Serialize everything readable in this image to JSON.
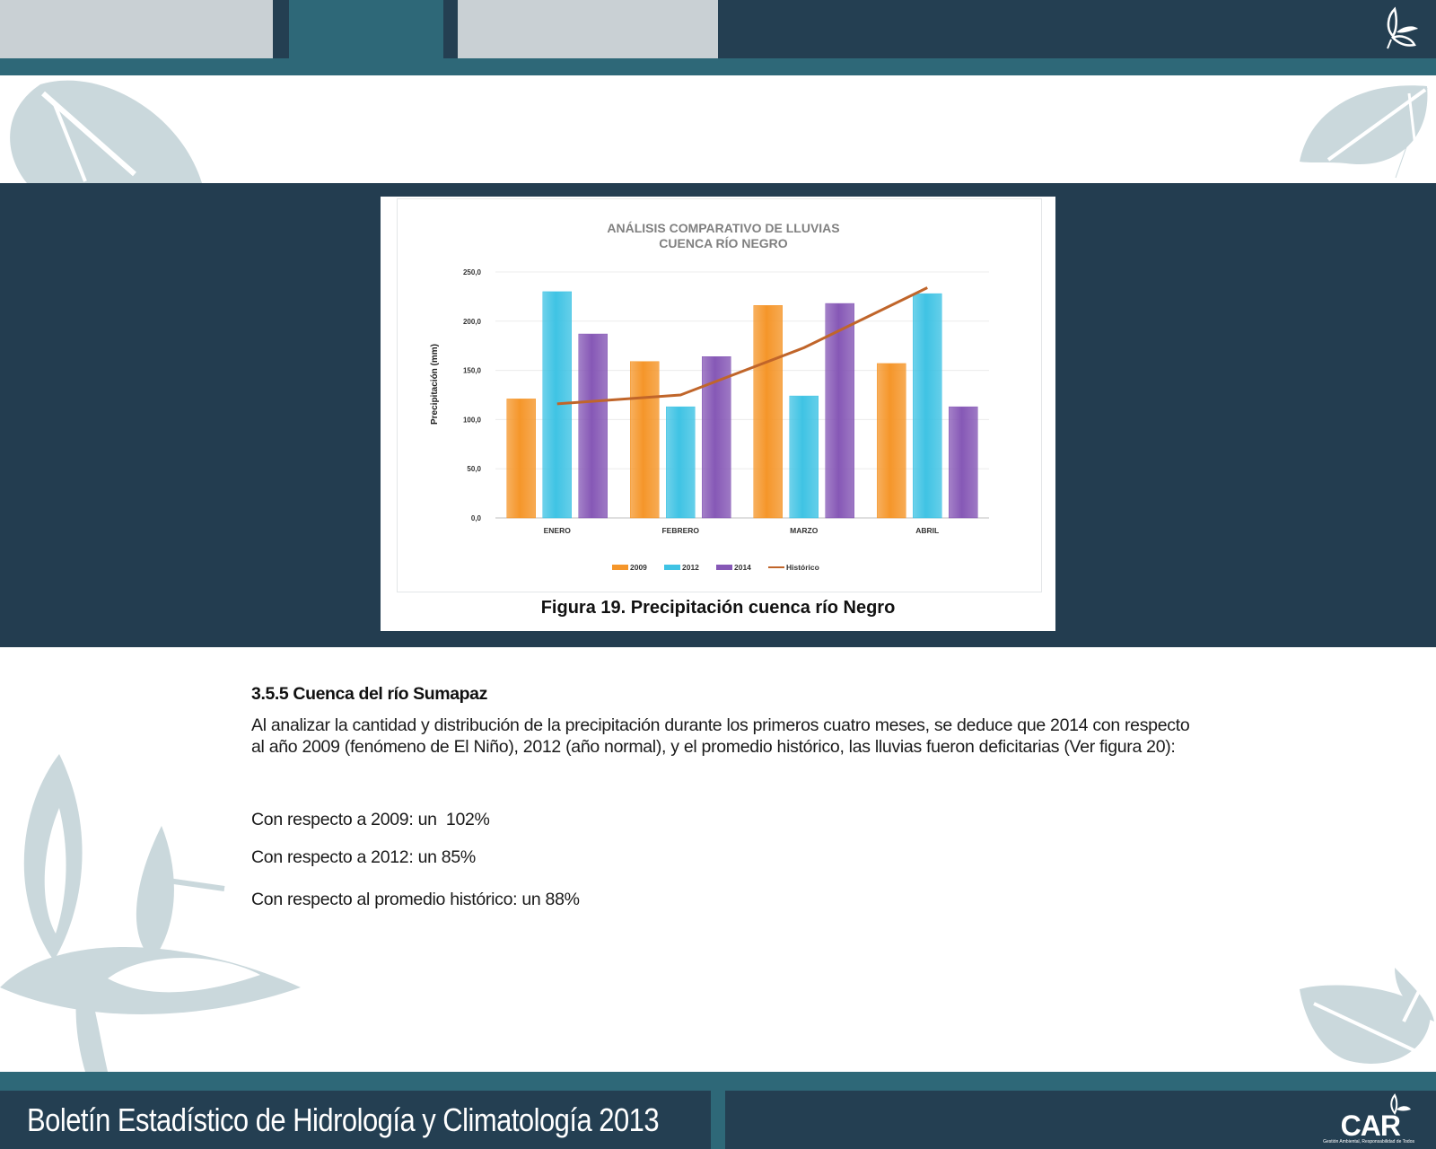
{
  "header": {
    "logo_icon": "butterfly-icon"
  },
  "colors": {
    "dark_navy": "#243f52",
    "teal": "#2e6878",
    "light_gray": "#c9d0d4",
    "leaf_decoration": "#cad8dc",
    "series_2009": "#f5962a",
    "series_2012": "#3fc3e4",
    "series_2014": "#8658b6",
    "series_historico": "#c0652a"
  },
  "figure": {
    "caption": "Figura 19. Precipitación cuenca río Negro"
  },
  "chart_data": {
    "type": "bar",
    "title": "ANÁLISIS COMPARATIVO DE LLUVIAS",
    "subtitle": "CUENCA RÍO NEGRO",
    "xlabel": "",
    "ylabel": "Precipitación (mm)",
    "ylim": [
      0,
      250
    ],
    "yticks": [
      "0,0",
      "50,0",
      "100,0",
      "150,0",
      "200,0",
      "250,0"
    ],
    "grid": true,
    "legend_position": "bottom",
    "categories": [
      "ENERO",
      "FEBRERO",
      "MARZO",
      "ABRIL"
    ],
    "series": [
      {
        "name": "2009",
        "type": "bar",
        "values": [
          121,
          159,
          216,
          157
        ]
      },
      {
        "name": "2012",
        "type": "bar",
        "values": [
          230,
          113,
          124,
          228
        ]
      },
      {
        "name": "2014",
        "type": "bar",
        "values": [
          187,
          164,
          218,
          113
        ]
      },
      {
        "name": "Histórico",
        "type": "line",
        "values": [
          116,
          125,
          173,
          234
        ]
      }
    ]
  },
  "section": {
    "title": "3.5.5 Cuenca del río Sumapaz",
    "paragraph": "Al analizar la cantidad y distribución de la precipitación durante los primeros cuatro meses, se deduce que 2014 con respecto al año 2009 (fenómeno de El Niño), 2012 (año normal), y el promedio histórico, las lluvias fueron deficitarias (Ver figura 20):",
    "stats": [
      "Con respecto a 2009: un  102%",
      "Con respecto a 2012: un 85%",
      "Con respecto al promedio histórico: un 88%"
    ]
  },
  "footer": {
    "title": "Boletín Estadístico de Hidrología y Climatología 2013",
    "logo_text": "CAR",
    "logo_subtext": "Gestión Ambiental, Responsabilidad de Todos"
  }
}
